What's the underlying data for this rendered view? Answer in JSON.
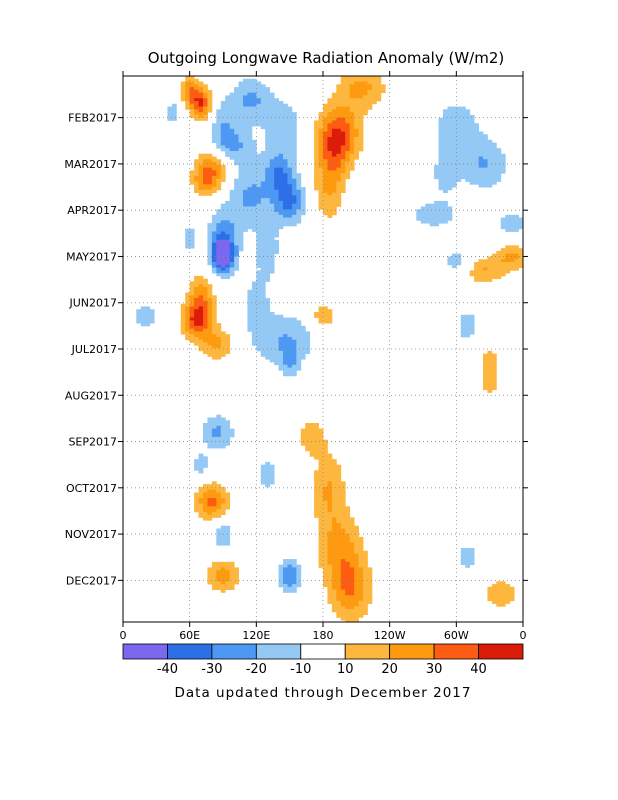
{
  "chart_data": {
    "type": "heatmap",
    "title": "Outgoing Longwave Radiation Anomaly (W/m2)",
    "note": "Data updated through December 2017",
    "xlabel": "",
    "ylabel": "",
    "x_ticks": [
      "0",
      "60E",
      "120E",
      "180",
      "120W",
      "60W",
      "0"
    ],
    "x_tick_degrees": [
      0,
      60,
      120,
      180,
      240,
      300,
      360
    ],
    "xlim": [
      0,
      360
    ],
    "y_ticks": [
      "FEB2017",
      "MAR2017",
      "APR2017",
      "MAY2017",
      "JUN2017",
      "JUL2017",
      "AUG2017",
      "SEP2017",
      "OCT2017",
      "NOV2017",
      "DEC2017"
    ],
    "y_tick_months": [
      1,
      2,
      3,
      4,
      5,
      6,
      7,
      8,
      9,
      10,
      11
    ],
    "ylim_months": [
      0.1,
      11.9
    ],
    "grid": true,
    "colorbar": {
      "labels": [
        "-40",
        "-30",
        "-20",
        "-10",
        "10",
        "20",
        "30",
        "40"
      ],
      "colors": [
        "#7b68ee",
        "#2d6fe6",
        "#4d98f2",
        "#94c8f5",
        "#ffffff",
        "#fdb73e",
        "#fe9a10",
        "#fd5d12",
        "#dc1c0a"
      ]
    },
    "anomaly_regions": [
      {
        "lon": 60,
        "month": 0.4,
        "rlon": 8,
        "rmonth": 0.3,
        "value": 25
      },
      {
        "lon": 70,
        "month": 0.7,
        "rlon": 10,
        "rmonth": 0.35,
        "value": 40
      },
      {
        "lon": 45,
        "month": 0.9,
        "rlon": 7,
        "rmonth": 0.3,
        "value": -15
      },
      {
        "lon": 90,
        "month": 1.0,
        "rlon": 12,
        "rmonth": 0.45,
        "value": -15
      },
      {
        "lon": 95,
        "month": 1.6,
        "rlon": 20,
        "rmonth": 0.4,
        "value": -25
      },
      {
        "lon": 115,
        "month": 0.6,
        "rlon": 18,
        "rmonth": 0.5,
        "value": -22
      },
      {
        "lon": 145,
        "month": 1.3,
        "rlon": 18,
        "rmonth": 0.7,
        "value": -18
      },
      {
        "lon": 215,
        "month": 0.35,
        "rlon": 22,
        "rmonth": 0.45,
        "value": 22
      },
      {
        "lon": 195,
        "month": 1.3,
        "rlon": 20,
        "rmonth": 0.6,
        "value": 32
      },
      {
        "lon": 190,
        "month": 1.8,
        "rlon": 15,
        "rmonth": 0.6,
        "value": 22
      },
      {
        "lon": 185,
        "month": 2.6,
        "rlon": 14,
        "rmonth": 0.7,
        "value": 18
      },
      {
        "lon": 80,
        "month": 2.1,
        "rlon": 15,
        "rmonth": 0.5,
        "value": 32
      },
      {
        "lon": 72,
        "month": 2.4,
        "rlon": 10,
        "rmonth": 0.3,
        "value": 15
      },
      {
        "lon": 115,
        "month": 2.7,
        "rlon": 22,
        "rmonth": 0.7,
        "value": -22
      },
      {
        "lon": 150,
        "month": 2.8,
        "rlon": 14,
        "rmonth": 0.5,
        "value": -32
      },
      {
        "lon": 140,
        "month": 2.2,
        "rlon": 12,
        "rmonth": 0.4,
        "value": -22
      },
      {
        "lon": 300,
        "month": 1.2,
        "rlon": 20,
        "rmonth": 0.6,
        "value": -18
      },
      {
        "lon": 325,
        "month": 2.0,
        "rlon": 22,
        "rmonth": 0.6,
        "value": -20
      },
      {
        "lon": 290,
        "month": 2.2,
        "rlon": 12,
        "rmonth": 0.5,
        "value": -15
      },
      {
        "lon": 280,
        "month": 3.1,
        "rlon": 25,
        "rmonth": 0.35,
        "value": -15
      },
      {
        "lon": 350,
        "month": 3.3,
        "rlon": 15,
        "rmonth": 0.35,
        "value": -15
      },
      {
        "lon": 90,
        "month": 3.6,
        "rlon": 14,
        "rmonth": 0.6,
        "value": -25
      },
      {
        "lon": 90,
        "month": 4.0,
        "rlon": 10,
        "rmonth": 0.35,
        "value": -48
      },
      {
        "lon": 60,
        "month": 3.6,
        "rlon": 8,
        "rmonth": 0.35,
        "value": -15
      },
      {
        "lon": 130,
        "month": 3.9,
        "rlon": 10,
        "rmonth": 0.6,
        "value": -18
      },
      {
        "lon": 350,
        "month": 4.0,
        "rlon": 15,
        "rmonth": 0.3,
        "value": 22
      },
      {
        "lon": 325,
        "month": 4.3,
        "rlon": 18,
        "rmonth": 0.3,
        "value": 20
      },
      {
        "lon": 300,
        "month": 4.1,
        "rlon": 15,
        "rmonth": 0.25,
        "value": -15
      },
      {
        "lon": 70,
        "month": 5.0,
        "rlon": 12,
        "rmonth": 0.6,
        "value": 30
      },
      {
        "lon": 65,
        "month": 5.4,
        "rlon": 14,
        "rmonth": 0.35,
        "value": 28
      },
      {
        "lon": 85,
        "month": 5.9,
        "rlon": 15,
        "rmonth": 0.35,
        "value": 22
      },
      {
        "lon": 20,
        "month": 5.3,
        "rlon": 14,
        "rmonth": 0.35,
        "value": -15
      },
      {
        "lon": 145,
        "month": 5.8,
        "rlon": 30,
        "rmonth": 0.6,
        "value": -20
      },
      {
        "lon": 180,
        "month": 5.3,
        "rlon": 12,
        "rmonth": 0.3,
        "value": 18
      },
      {
        "lon": 120,
        "month": 5.0,
        "rlon": 12,
        "rmonth": 0.6,
        "value": -15
      },
      {
        "lon": 150,
        "month": 6.3,
        "rlon": 8,
        "rmonth": 0.35,
        "value": -15
      },
      {
        "lon": 330,
        "month": 6.5,
        "rlon": 10,
        "rmonth": 0.6,
        "value": 18
      },
      {
        "lon": 310,
        "month": 5.5,
        "rlon": 12,
        "rmonth": 0.4,
        "value": -15
      },
      {
        "lon": 85,
        "month": 7.8,
        "rlon": 15,
        "rmonth": 0.4,
        "value": -22
      },
      {
        "lon": 170,
        "month": 7.9,
        "rlon": 12,
        "rmonth": 0.4,
        "value": 18
      },
      {
        "lon": 80,
        "month": 9.3,
        "rlon": 15,
        "rmonth": 0.4,
        "value": 32
      },
      {
        "lon": 130,
        "month": 8.7,
        "rlon": 10,
        "rmonth": 0.35,
        "value": -18
      },
      {
        "lon": 70,
        "month": 8.5,
        "rlon": 8,
        "rmonth": 0.3,
        "value": -15
      },
      {
        "lon": 185,
        "month": 9.0,
        "rlon": 15,
        "rmonth": 0.8,
        "value": 20
      },
      {
        "lon": 195,
        "month": 10.3,
        "rlon": 20,
        "rmonth": 0.8,
        "value": 22
      },
      {
        "lon": 205,
        "month": 11.2,
        "rlon": 18,
        "rmonth": 0.7,
        "value": 28
      },
      {
        "lon": 90,
        "month": 10.9,
        "rlon": 15,
        "rmonth": 0.35,
        "value": 25
      },
      {
        "lon": 150,
        "month": 10.9,
        "rlon": 10,
        "rmonth": 0.35,
        "value": -30
      },
      {
        "lon": 90,
        "month": 10.0,
        "rlon": 10,
        "rmonth": 0.35,
        "value": -18
      },
      {
        "lon": 340,
        "month": 11.3,
        "rlon": 15,
        "rmonth": 0.35,
        "value": 18
      },
      {
        "lon": 310,
        "month": 10.5,
        "rlon": 10,
        "rmonth": 0.35,
        "value": -15
      }
    ]
  }
}
